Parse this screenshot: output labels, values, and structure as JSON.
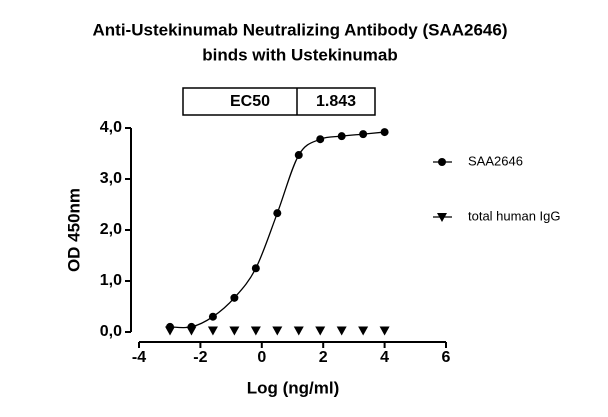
{
  "chart_data": {
    "type": "scatter",
    "title": "Anti-Ustekinumab Neutralizing Antibody (SAA2646)",
    "subtitle": "binds with Ustekinumab",
    "x_label": "Log (ng/ml)",
    "y_label": "OD 450nm",
    "annotation": {
      "label": "EC50",
      "value": "1.843"
    },
    "xlim": [
      -4,
      6
    ],
    "xticks": [
      -4,
      -2,
      0,
      2,
      4,
      6
    ],
    "ylim": [
      0,
      4
    ],
    "yticks": [
      {
        "value": 0,
        "label": "0,0"
      },
      {
        "value": 1,
        "label": "1,0"
      },
      {
        "value": 2,
        "label": "2,0"
      },
      {
        "value": 3,
        "label": "3,0"
      },
      {
        "value": 4,
        "label": "4,0"
      }
    ],
    "x": [
      -2.99,
      -2.291,
      -1.592,
      -0.893,
      -0.194,
      0.505,
      1.204,
      1.903,
      2.602,
      3.301,
      4.0
    ],
    "series": [
      {
        "name": "SAA2646",
        "color": "#000000",
        "marker": "circle",
        "fit": true,
        "values": [
          0.1,
          0.1,
          0.3,
          0.67,
          1.25,
          2.33,
          3.47,
          3.78,
          3.84,
          3.88,
          3.92
        ]
      },
      {
        "name": "total human IgG",
        "color": "#000000",
        "marker": "triangle-down",
        "fit": false,
        "values": [
          0.03,
          0.03,
          0.03,
          0.03,
          0.03,
          0.03,
          0.03,
          0.03,
          0.03,
          0.03,
          0.03
        ]
      }
    ]
  }
}
